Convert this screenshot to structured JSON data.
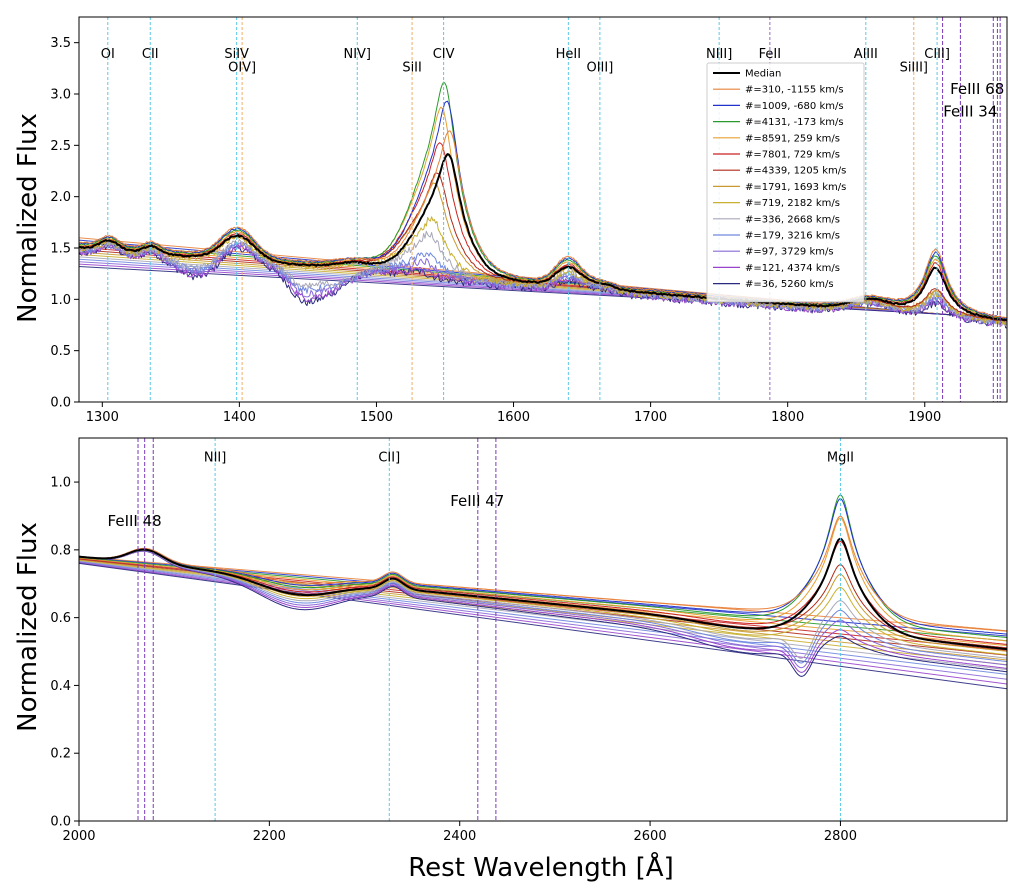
{
  "chart_data": [
    {
      "type": "line",
      "panel": "top",
      "xlabel": "",
      "ylabel": "Normalized Flux",
      "xlim": [
        1283,
        1960
      ],
      "ylim": [
        0.0,
        3.75
      ],
      "xticks": [
        1300,
        1400,
        1500,
        1600,
        1700,
        1800,
        1900
      ],
      "yticks": [
        0.0,
        0.5,
        1.0,
        1.5,
        2.0,
        2.5,
        3.0,
        3.5
      ],
      "ytick_labels": [
        "0.0",
        "0.5",
        "1.0",
        "1.5",
        "2.0",
        "2.5",
        "3.0",
        "3.5"
      ],
      "line_markers": [
        {
          "name": "OI",
          "wl": 1304,
          "label_y": 3.35,
          "color": "#5bc8e6"
        },
        {
          "name": "CII",
          "wl": 1335,
          "label_y": 3.35,
          "color": "#5bc8e6"
        },
        {
          "name": "SiIV",
          "wl": 1398,
          "label_y": 3.35,
          "color": "#5bc8e6"
        },
        {
          "name": "OIV]",
          "wl": 1402,
          "label_y": 3.22,
          "color": "#f0b068"
        },
        {
          "name": "NIV]",
          "wl": 1486,
          "label_y": 3.35,
          "color": "#5bc8e6"
        },
        {
          "name": "SiII",
          "wl": 1526,
          "label_y": 3.22,
          "color": "#f0b068"
        },
        {
          "name": "CIV",
          "wl": 1549,
          "label_y": 3.35,
          "color": "#5bc8e6"
        },
        {
          "name": "HeII",
          "wl": 1640,
          "label_y": 3.35,
          "color": "#5bc8e6"
        },
        {
          "name": "OIII]",
          "wl": 1663,
          "label_y": 3.22,
          "color": "#5bc8e6"
        },
        {
          "name": "NIII]",
          "wl": 1750,
          "label_y": 3.35,
          "color": "#5bc8e6"
        },
        {
          "name": "FeII",
          "wl": 1787,
          "label_y": 3.35,
          "color": "#9966cc"
        },
        {
          "name": "AlIII",
          "wl": 1857,
          "label_y": 3.35,
          "color": "#5bc8e6"
        },
        {
          "name": "SiIII]",
          "wl": 1892,
          "label_y": 3.22,
          "color": "#f0b068"
        },
        {
          "name": "CIII]",
          "wl": 1909,
          "label_y": 3.35,
          "color": "#5bc8e6"
        }
      ],
      "fe_labels": [
        {
          "name": "FeIII 68",
          "x": 1958,
          "y": 3.0
        },
        {
          "name": "FeIII 34",
          "x": 1953,
          "y": 2.78
        }
      ],
      "legend": {
        "placement": "upper right",
        "entries": [
          {
            "label": "Median",
            "color": "#000000"
          },
          {
            "label": "#=310,  -1155 km/s",
            "color": "#e8823a"
          },
          {
            "label": "#=1009,  -680 km/s",
            "color": "#2233cc"
          },
          {
            "label": "#=4131,  -173 km/s",
            "color": "#2a9a2a"
          },
          {
            "label": "#=8591,   259 km/s",
            "color": "#e8a030"
          },
          {
            "label": "#=7801,   729 km/s",
            "color": "#cc2222"
          },
          {
            "label": "#=4339, 1205 km/s",
            "color": "#b02a1a"
          },
          {
            "label": "#=1791, 1693 km/s",
            "color": "#c89a30"
          },
          {
            "label": "#=719,   2182 km/s",
            "color": "#c8b030"
          },
          {
            "label": "#=336,   2668 km/s",
            "color": "#a8a8b8"
          },
          {
            "label": "#=179,   3216 km/s",
            "color": "#7088e0"
          },
          {
            "label": "#=97,     3729 km/s",
            "color": "#8a6ad8"
          },
          {
            "label": "#=121,   4374 km/s",
            "color": "#9a44cc"
          },
          {
            "label": "#=36,     5260 km/s",
            "color": "#2a2a80"
          }
        ]
      }
    },
    {
      "type": "line",
      "panel": "bottom",
      "xlabel": "Rest Wavelength [Å]",
      "ylabel": "Normalized Flux",
      "xlim": [
        2000,
        2975
      ],
      "ylim": [
        0.0,
        1.13
      ],
      "xticks": [
        2000,
        2200,
        2400,
        2600,
        2800
      ],
      "yticks": [
        0.0,
        0.2,
        0.4,
        0.6,
        0.8,
        1.0
      ],
      "ytick_labels": [
        "0.0",
        "0.2",
        "0.4",
        "0.6",
        "0.8",
        "1.0"
      ],
      "line_markers": [
        {
          "name": "NII]",
          "wl": 2143,
          "label_y": 1.06,
          "color": "#5bc8e6"
        },
        {
          "name": "CII]",
          "wl": 2326,
          "label_y": 1.06,
          "color": "#5bc8e6"
        },
        {
          "name": "MgII",
          "wl": 2800,
          "label_y": 1.06,
          "color": "#5bc8e6"
        }
      ],
      "fe_labels": [
        {
          "name": "FeIII 48",
          "x": 2030,
          "y": 0.87
        },
        {
          "name": "FeIII 47",
          "x": 2390,
          "y": 0.93
        }
      ]
    }
  ]
}
